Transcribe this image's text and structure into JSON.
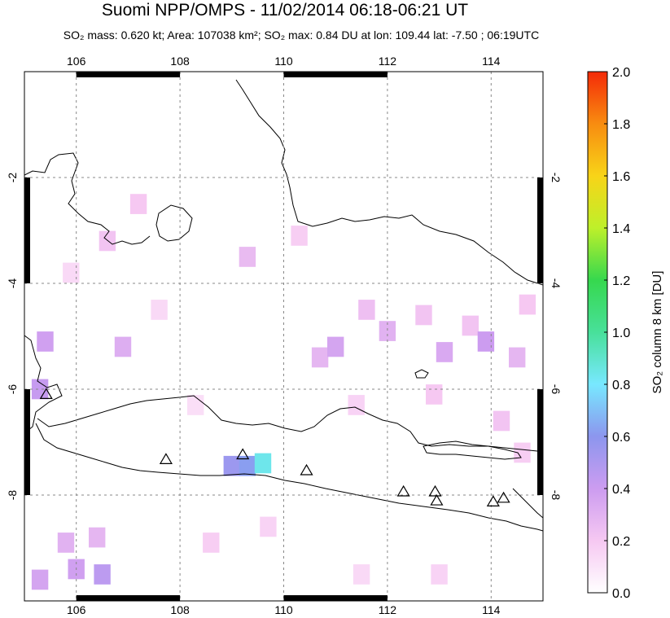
{
  "title": "Suomi NPP/OMPS - 11/02/2014 06:18-06:21 UT",
  "subtitle": {
    "so2_mass": "SO₂ mass: 0.620 kt;",
    "area": "Area: 107038 km²;",
    "so2_max": "SO₂ max: 0.84 DU at lon: 109.44 lat: -7.50 ; 06:19UTC"
  },
  "map": {
    "lon_range": [
      105,
      115
    ],
    "lat_range": [
      -10,
      0
    ],
    "x_ticks": [
      {
        "value": 106,
        "label": "106"
      },
      {
        "value": 108,
        "label": "108"
      },
      {
        "value": 110,
        "label": "110"
      },
      {
        "value": 112,
        "label": "112"
      },
      {
        "value": 114,
        "label": "114"
      }
    ],
    "y_ticks": [
      {
        "value": -2,
        "label": "-2"
      },
      {
        "value": -4,
        "label": "-4"
      },
      {
        "value": -6,
        "label": "-6"
      },
      {
        "value": -8,
        "label": "-8"
      }
    ],
    "volcanoes": [
      {
        "lon": 105.42,
        "lat": -6.1
      },
      {
        "lon": 107.73,
        "lat": -7.33
      },
      {
        "lon": 109.21,
        "lat": -7.24
      },
      {
        "lon": 110.44,
        "lat": -7.54
      },
      {
        "lon": 112.31,
        "lat": -7.94
      },
      {
        "lon": 112.92,
        "lat": -7.94
      },
      {
        "lon": 112.95,
        "lat": -8.11
      },
      {
        "lon": 114.04,
        "lat": -8.13
      },
      {
        "lon": 114.24,
        "lat": -8.06
      }
    ],
    "so2_cells": [
      {
        "lon": 109.0,
        "lat": -7.45,
        "du": 0.55
      },
      {
        "lon": 109.3,
        "lat": -7.45,
        "du": 0.62
      },
      {
        "lon": 109.6,
        "lat": -7.4,
        "du": 0.84
      },
      {
        "lon": 105.3,
        "lat": -6.0,
        "du": 0.42
      },
      {
        "lon": 105.4,
        "lat": -5.1,
        "du": 0.38
      },
      {
        "lon": 105.3,
        "lat": -9.6,
        "du": 0.36
      },
      {
        "lon": 106.0,
        "lat": -9.4,
        "du": 0.38
      },
      {
        "lon": 106.5,
        "lat": -9.5,
        "du": 0.45
      },
      {
        "lon": 105.8,
        "lat": -8.9,
        "du": 0.3
      },
      {
        "lon": 106.4,
        "lat": -8.8,
        "du": 0.28
      },
      {
        "lon": 106.9,
        "lat": -5.2,
        "du": 0.32
      },
      {
        "lon": 106.6,
        "lat": -3.2,
        "du": 0.22
      },
      {
        "lon": 107.2,
        "lat": -2.5,
        "du": 0.2
      },
      {
        "lon": 109.3,
        "lat": -3.5,
        "du": 0.26
      },
      {
        "lon": 110.3,
        "lat": -3.1,
        "du": 0.18
      },
      {
        "lon": 110.7,
        "lat": -5.4,
        "du": 0.28
      },
      {
        "lon": 111.0,
        "lat": -5.2,
        "du": 0.36
      },
      {
        "lon": 111.6,
        "lat": -4.5,
        "du": 0.24
      },
      {
        "lon": 112.0,
        "lat": -4.9,
        "du": 0.3
      },
      {
        "lon": 112.7,
        "lat": -4.6,
        "du": 0.22
      },
      {
        "lon": 113.1,
        "lat": -5.3,
        "du": 0.34
      },
      {
        "lon": 113.6,
        "lat": -4.8,
        "du": 0.22
      },
      {
        "lon": 113.9,
        "lat": -5.1,
        "du": 0.4
      },
      {
        "lon": 114.5,
        "lat": -5.4,
        "du": 0.28
      },
      {
        "lon": 114.7,
        "lat": -4.4,
        "du": 0.2
      },
      {
        "lon": 114.2,
        "lat": -6.6,
        "du": 0.22
      },
      {
        "lon": 114.6,
        "lat": -7.2,
        "du": 0.18
      },
      {
        "lon": 112.9,
        "lat": -6.1,
        "du": 0.2
      },
      {
        "lon": 111.4,
        "lat": -6.3,
        "du": 0.16
      },
      {
        "lon": 108.6,
        "lat": -8.9,
        "du": 0.18
      },
      {
        "lon": 109.7,
        "lat": -8.6,
        "du": 0.16
      },
      {
        "lon": 111.5,
        "lat": -9.5,
        "du": 0.14
      },
      {
        "lon": 113.0,
        "lat": -9.5,
        "du": 0.16
      },
      {
        "lon": 108.3,
        "lat": -6.3,
        "du": 0.12
      },
      {
        "lon": 107.6,
        "lat": -4.5,
        "du": 0.14
      },
      {
        "lon": 105.9,
        "lat": -3.8,
        "du": 0.14
      }
    ]
  },
  "colorbar": {
    "label": "SO₂ column 8 km [DU]",
    "min": 0.0,
    "max": 2.0,
    "tick_labels": [
      "0.0",
      "0.2",
      "0.4",
      "0.6",
      "0.8",
      "1.0",
      "1.2",
      "1.4",
      "1.6",
      "1.8",
      "2.0"
    ],
    "colors": [
      "#ffffff",
      "#f6c8f2",
      "#cc9cf0",
      "#8c96ee",
      "#78e8ff",
      "#48e09a",
      "#36d84e",
      "#bef02a",
      "#f8d418",
      "#f88c10",
      "#f42a08"
    ]
  }
}
